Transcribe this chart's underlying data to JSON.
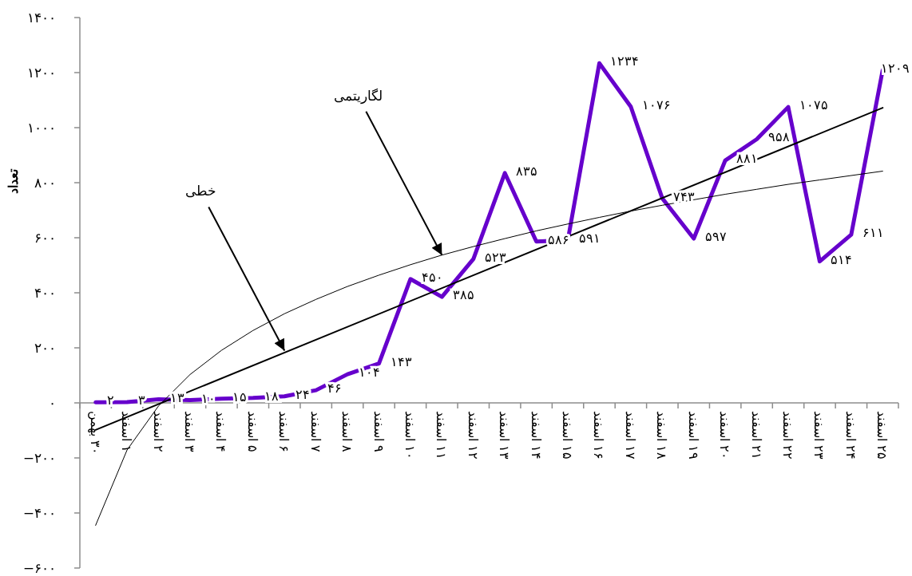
{
  "chart_data": {
    "type": "line",
    "ylabel": "تعداد",
    "categories": [
      "۳۰ بهمن",
      "۱ اسفند",
      "۲ اسفند",
      "۳ اسفند",
      "۴ اسفند",
      "۵ اسفند",
      "۶ اسفند",
      "۷ اسفند",
      "۸ اسفند",
      "۹ اسفند",
      "۱۰ اسفند",
      "۱۱ اسفند",
      "۱۲ اسفند",
      "۱۳ اسفند",
      "۱۴ اسفند",
      "۱۵ اسفند",
      "۱۶ اسفند",
      "۱۷ اسفند",
      "۱۸ اسفند",
      "۱۹ اسفند",
      "۲۰ اسفند",
      "۲۱ اسفند",
      "۲۲ اسفند",
      "۲۳ اسفند",
      "۲۴ اسفند",
      "۲۵ اسفند"
    ],
    "series": [
      {
        "color": "#6600cc",
        "values": [
          2,
          3,
          13,
          10,
          15,
          18,
          24,
          46,
          104,
          143,
          450,
          385,
          523,
          835,
          586,
          591,
          1234,
          1076,
          743,
          597,
          881,
          958,
          1075,
          514,
          611,
          1209
        ],
        "value_labels": [
          "۲",
          "۳",
          "۱۳",
          "۱۰",
          "۱۵",
          "۱۸",
          "۲۴",
          "۴۶",
          "۱۰۴",
          "۱۴۳",
          "۴۵۰",
          "۳۸۵",
          "۵۲۳",
          "۸۳۵",
          "۵۸۶",
          "۵۹۱",
          "۱۲۳۴",
          "۱۰۷۶",
          "۷۴۳",
          "۵۹۷",
          "۸۸۱",
          "۹۵۸",
          "۱۰۷۵",
          "۵۱۴",
          "۶۱۱",
          "۱۲۰۹"
        ]
      },
      {
        "type": "line",
        "color": "#000000",
        "x": [
          "۳۰ بهمن",
          "۲۵ اسفند"
        ],
        "values": [
          -98,
          1072
        ]
      },
      {
        "type": "line",
        "color": "#000000",
        "x": [
          "۳۰ بهمن",
          "۱ اسفند",
          "۲ اسفند",
          "۳ اسفند",
          "۴ اسفند",
          "۵ اسفند",
          "۶ اسفند",
          "۷ اسفند",
          "۸ اسفند",
          "۹ اسفند",
          "۱۰ اسفند",
          "۱۱ اسفند",
          "۱۲ اسفند",
          "۱۳ اسفند",
          "۱۴ اسفند",
          "۱۵ اسفند",
          "۱۶ اسفند",
          "۱۷ اسفند",
          "۱۸ اسفند",
          "۱۹ اسفند",
          "۲۰ اسفند",
          "۲۱ اسفند",
          "۲۲ اسفند",
          "۲۳ اسفند",
          "۲۴ اسفند",
          "۲۵ اسفند"
        ],
        "values": [
          -445,
          -171,
          -11,
          103,
          191,
          263,
          324,
          376,
          423,
          464,
          502,
          537,
          568,
          597,
          625,
          650,
          674,
          697,
          718,
          738,
          758,
          776,
          794,
          810,
          826,
          842
        ]
      }
    ],
    "ylim": [
      -600,
      1400
    ],
    "yticks": [
      {
        "value": -600,
        "label": "−۶۰۰"
      },
      {
        "value": -400,
        "label": "−۴۰۰"
      },
      {
        "value": -200,
        "label": "−۲۰۰"
      },
      {
        "value": 0,
        "label": "۰"
      },
      {
        "value": 200,
        "label": "۲۰۰"
      },
      {
        "value": 400,
        "label": "۴۰۰"
      },
      {
        "value": 600,
        "label": "۶۰۰"
      },
      {
        "value": 800,
        "label": "۸۰۰"
      },
      {
        "value": 1000,
        "label": "۱۰۰۰"
      },
      {
        "value": 1200,
        "label": "۱۲۰۰"
      },
      {
        "value": 1400,
        "label": "۱۴۰۰"
      }
    ],
    "annotations": [
      {
        "text": "خطی",
        "x": "۶ اسفند",
        "y": 190
      },
      {
        "text": "لگاریتمی",
        "x": "۱۱ اسفند",
        "y": 537
      }
    ],
    "grid": false,
    "legend": false,
    "marker": "none",
    "line_style": "solid"
  }
}
